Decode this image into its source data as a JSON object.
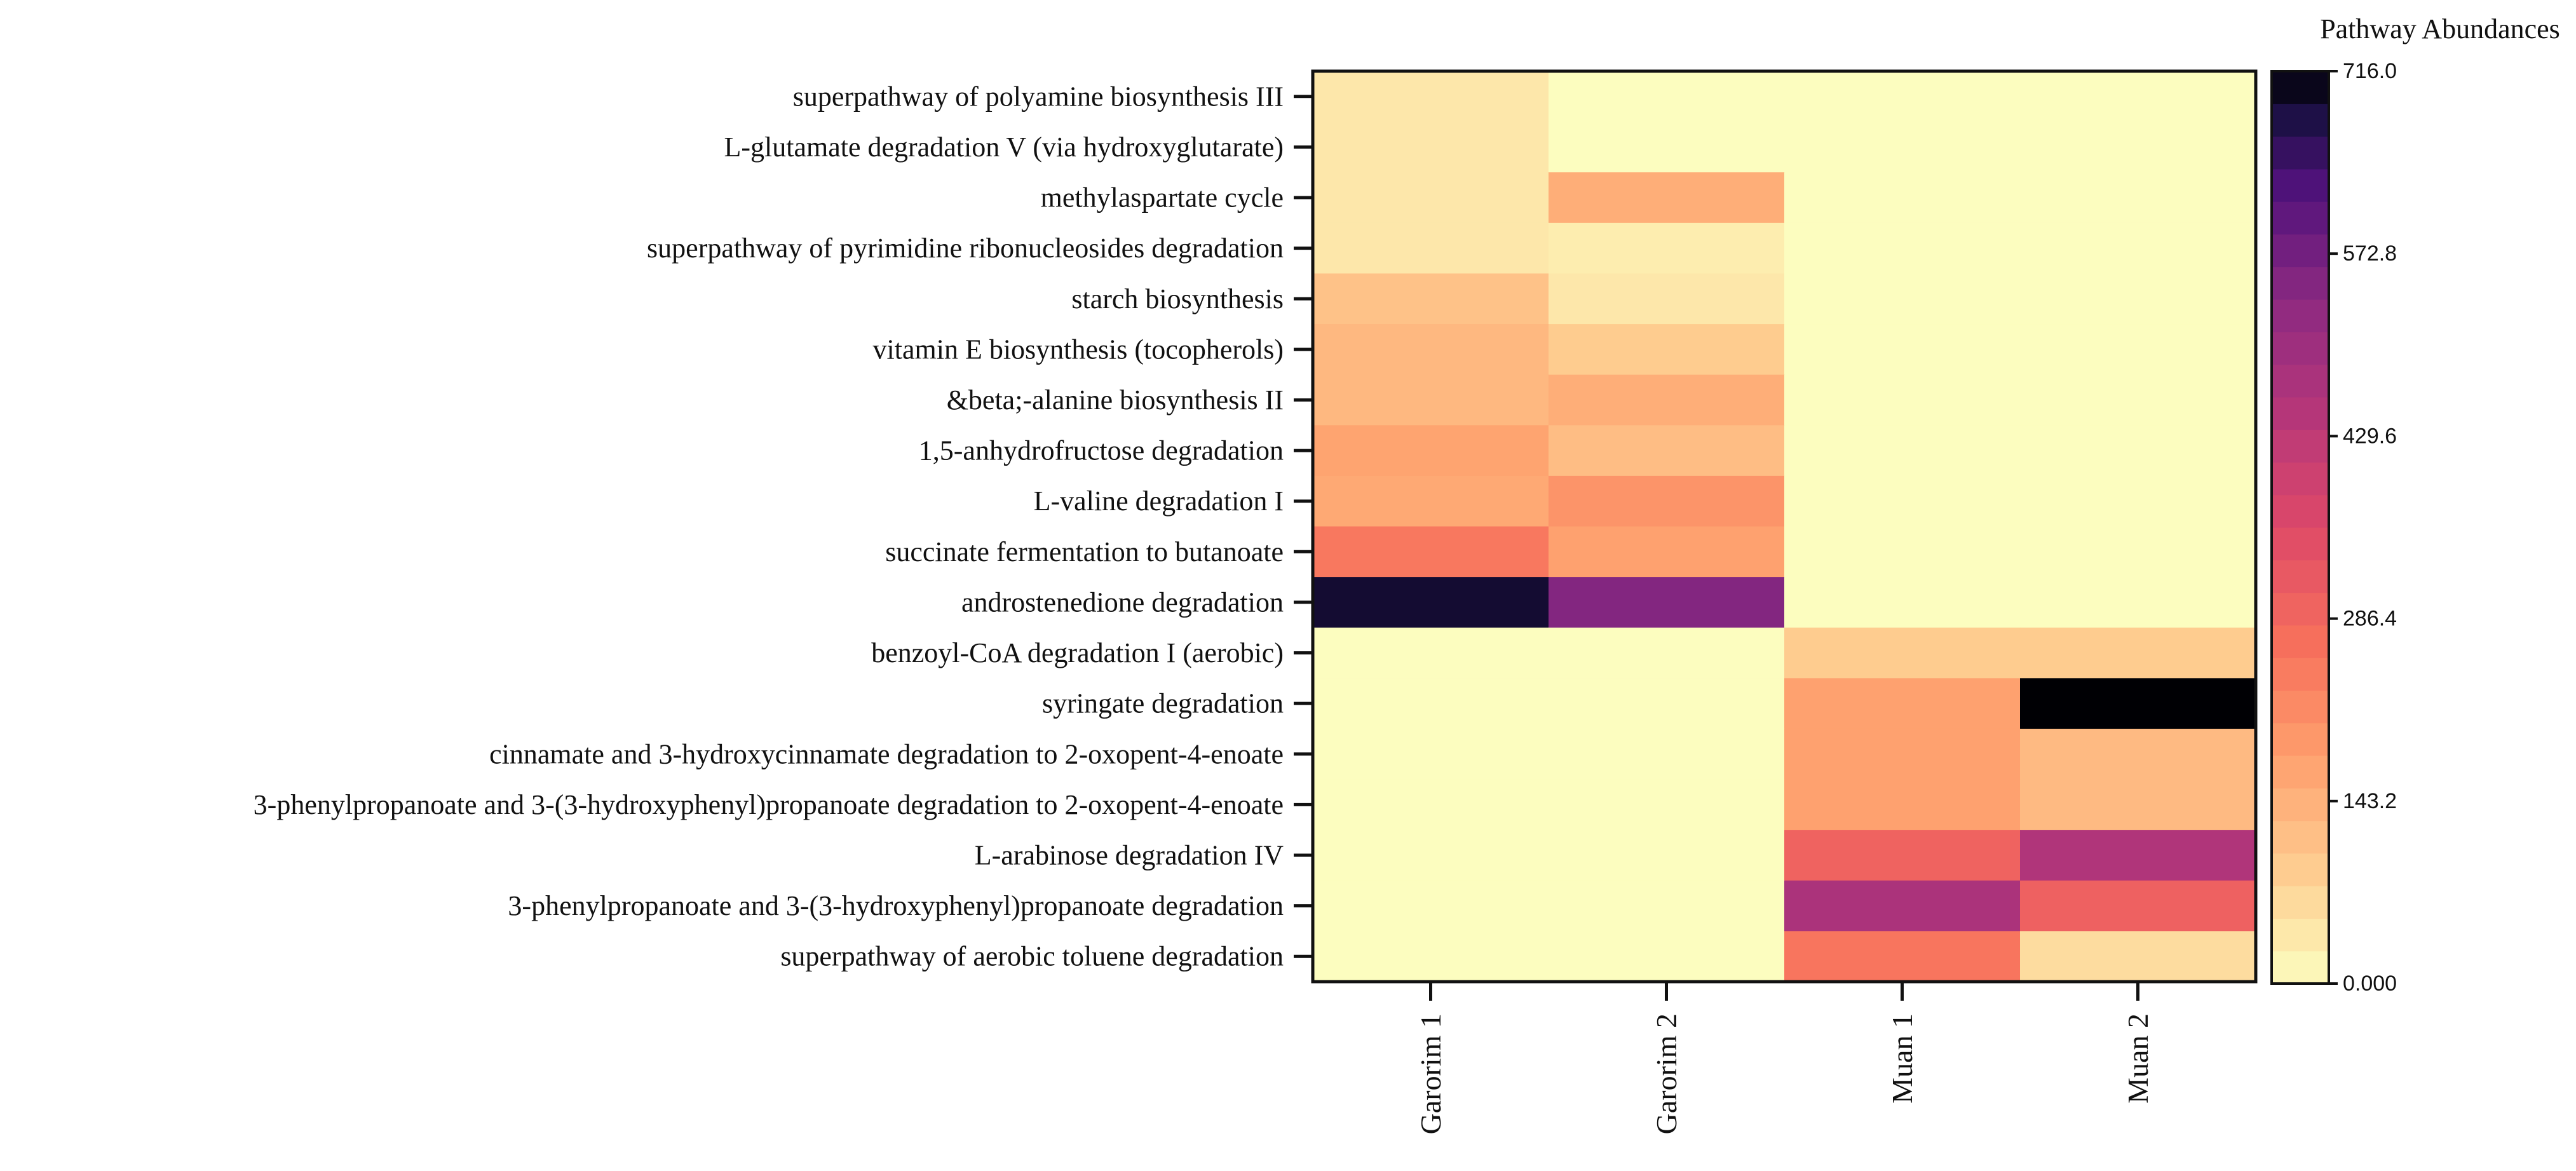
{
  "chart_data": {
    "type": "heatmap",
    "title": "",
    "colorbar_title": "Pathway Abundances",
    "columns": [
      "Garorim 1",
      "Garorim 2",
      "Muan 1",
      "Muan 2"
    ],
    "rows": [
      "superpathway of polyamine biosynthesis III",
      "L-glutamate degradation V (via hydroxyglutarate)",
      "methylaspartate cycle",
      "superpathway of pyrimidine ribonucleosides degradation",
      "starch biosynthesis",
      "vitamin E biosynthesis (tocopherols)",
      "&beta;-alanine biosynthesis II",
      "1,5-anhydrofructose degradation",
      "L-valine degradation I",
      "succinate fermentation to butanoate",
      "androstenedione degradation",
      "benzoyl-CoA degradation I (aerobic)",
      "syringate degradation",
      "cinnamate and 3-hydroxycinnamate degradation to 2-oxopent-4-enoate",
      "3-phenylpropanoate and 3-(3-hydroxyphenyl)propanoate degradation to 2-oxopent-4-enoate",
      "L-arabinose degradation IV",
      "3-phenylpropanoate and 3-(3-hydroxyphenyl)propanoate degradation",
      "superpathway of aerobic toluene degradation"
    ],
    "values": [
      [
        40,
        0,
        0,
        0
      ],
      [
        40,
        0,
        0,
        0
      ],
      [
        40,
        150,
        0,
        0
      ],
      [
        40,
        30,
        0,
        0
      ],
      [
        110,
        40,
        0,
        0
      ],
      [
        130,
        90,
        0,
        0
      ],
      [
        130,
        150,
        0,
        0
      ],
      [
        170,
        120,
        0,
        0
      ],
      [
        160,
        200,
        0,
        0
      ],
      [
        250,
        175,
        0,
        0
      ],
      [
        690,
        550,
        0,
        0
      ],
      [
        0,
        0,
        90,
        90
      ],
      [
        0,
        0,
        175,
        716
      ],
      [
        0,
        0,
        175,
        125
      ],
      [
        0,
        0,
        175,
        125
      ],
      [
        0,
        0,
        295,
        460
      ],
      [
        0,
        0,
        470,
        300
      ],
      [
        0,
        0,
        255,
        60
      ]
    ],
    "colorbar": {
      "min": 0.0,
      "max": 716.0,
      "ticks": [
        "716.0",
        "572.8",
        "429.6",
        "286.4",
        "143.2",
        "0.000"
      ],
      "colormap": "magma_r",
      "steps": 28
    }
  }
}
